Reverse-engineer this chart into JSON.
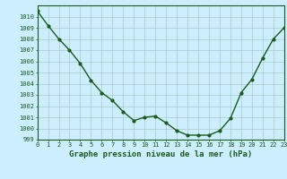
{
  "x": [
    0,
    1,
    2,
    3,
    4,
    5,
    6,
    7,
    8,
    9,
    10,
    11,
    12,
    13,
    14,
    15,
    16,
    17,
    18,
    19,
    20,
    21,
    22,
    23
  ],
  "y": [
    1010.5,
    1009.2,
    1008.0,
    1007.0,
    1005.8,
    1004.3,
    1003.2,
    1002.5,
    1001.5,
    1000.7,
    1001.0,
    1001.1,
    1000.5,
    999.8,
    999.4,
    999.4,
    999.4,
    999.8,
    1000.9,
    1003.2,
    1004.4,
    1006.3,
    1008.0,
    1009.0
  ],
  "line_color": "#1a5c1a",
  "marker": "o",
  "marker_size": 2.0,
  "bg_color": "#cceeff",
  "grid_color": "#aacccc",
  "ylim": [
    999,
    1011
  ],
  "xlim": [
    0,
    23
  ],
  "yticks": [
    999,
    1000,
    1001,
    1002,
    1003,
    1004,
    1005,
    1006,
    1007,
    1008,
    1009,
    1010
  ],
  "xticks": [
    0,
    1,
    2,
    3,
    4,
    5,
    6,
    7,
    8,
    9,
    10,
    11,
    12,
    13,
    14,
    15,
    16,
    17,
    18,
    19,
    20,
    21,
    22,
    23
  ],
  "xlabel": "Graphe pression niveau de la mer (hPa)",
  "xlabel_fontsize": 6.5,
  "tick_fontsize": 5.0,
  "line_width": 1.0
}
